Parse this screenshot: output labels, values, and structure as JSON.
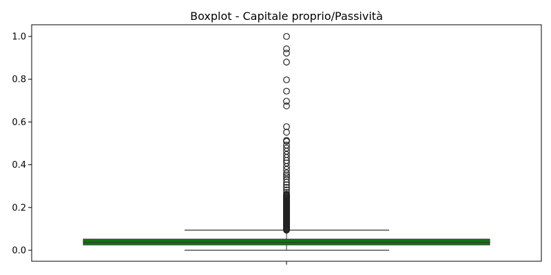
{
  "chart_data": {
    "type": "boxplot",
    "title": "Boxplot - Capitale proprio/Passività",
    "xlabel": "",
    "ylabel": "",
    "ylim": [
      -0.05,
      1.05
    ],
    "yticks": [
      0.0,
      0.2,
      0.4,
      0.6,
      0.8,
      1.0
    ],
    "ytick_labels": [
      "0.0",
      "0.2",
      "0.4",
      "0.6",
      "0.8",
      "1.0"
    ],
    "grid": false,
    "box": {
      "min": 0.0,
      "q1": 0.025,
      "median": 0.037,
      "q3": 0.052,
      "whisker_low": 0.0,
      "whisker_high": 0.094,
      "fill_color": "#0a7a0a",
      "edge_color": "#333333"
    },
    "outliers": [
      1.0,
      0.942,
      0.922,
      0.88,
      0.797,
      0.744,
      0.697,
      0.675,
      0.578,
      0.552,
      0.514,
      0.509,
      0.492,
      0.478,
      0.463,
      0.448,
      0.434,
      0.42,
      0.408,
      0.392,
      0.378,
      0.362,
      0.352,
      0.344,
      0.332,
      0.318,
      0.306,
      0.294,
      0.282,
      0.27,
      0.262,
      0.254,
      0.246,
      0.238,
      0.23,
      0.222,
      0.214,
      0.206,
      0.198,
      0.19,
      0.182,
      0.174,
      0.166,
      0.158,
      0.15,
      0.142,
      0.134,
      0.126,
      0.118,
      0.11,
      0.102,
      0.096
    ]
  }
}
